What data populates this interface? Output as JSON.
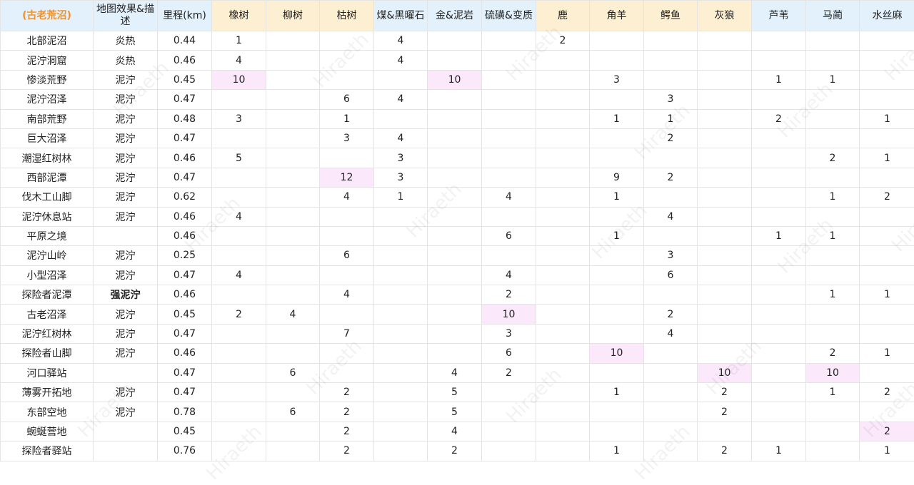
{
  "colors": {
    "header_blue": "#e2f1fb",
    "header_orange": "#fdefd1",
    "title": "#f0922b",
    "highlight": "#fbe8fb"
  },
  "watermark": "Hiraeth",
  "headers": [
    {
      "label": "(古老荒沼)",
      "style": "blue"
    },
    {
      "label": "地图效果&描述",
      "style": "blue"
    },
    {
      "label": "里程(km)",
      "style": "blue"
    },
    {
      "label": "橡树",
      "style": "orange"
    },
    {
      "label": "柳树",
      "style": "orange"
    },
    {
      "label": "枯树",
      "style": "orange"
    },
    {
      "label": "煤&黑曜石",
      "style": "blue"
    },
    {
      "label": "金&泥岩",
      "style": "blue"
    },
    {
      "label": "硫磺&变质",
      "style": "blue"
    },
    {
      "label": "鹿",
      "style": "orange"
    },
    {
      "label": "角羊",
      "style": "orange"
    },
    {
      "label": "鳄鱼",
      "style": "orange"
    },
    {
      "label": "灰狼",
      "style": "orange"
    },
    {
      "label": "芦苇",
      "style": "blue"
    },
    {
      "label": "马蔺",
      "style": "blue"
    },
    {
      "label": "水丝麻",
      "style": "blue"
    }
  ],
  "rows": [
    {
      "name": "北部泥沼",
      "effect": "炎热",
      "km": "0.44",
      "values": [
        "1",
        "",
        "",
        "4",
        "",
        "",
        "2",
        "",
        "",
        "",
        "",
        "",
        ""
      ],
      "highlight": []
    },
    {
      "name": "泥泞洞窟",
      "effect": "炎热",
      "km": "0.46",
      "values": [
        "4",
        "",
        "",
        "4",
        "",
        "",
        "",
        "",
        "",
        "",
        "",
        "",
        ""
      ],
      "highlight": []
    },
    {
      "name": "惨淡荒野",
      "effect": "泥泞",
      "km": "0.45",
      "values": [
        "10",
        "",
        "",
        "",
        "10",
        "",
        "",
        "3",
        "",
        "",
        "1",
        "1",
        ""
      ],
      "highlight": [
        0,
        4
      ]
    },
    {
      "name": "泥泞沼泽",
      "effect": "泥泞",
      "km": "0.47",
      "values": [
        "",
        "",
        "6",
        "4",
        "",
        "",
        "",
        "",
        "3",
        "",
        "",
        "",
        ""
      ],
      "highlight": []
    },
    {
      "name": "南部荒野",
      "effect": "泥泞",
      "km": "0.48",
      "values": [
        "3",
        "",
        "1",
        "",
        "",
        "",
        "",
        "1",
        "1",
        "",
        "2",
        "",
        "1"
      ],
      "highlight": []
    },
    {
      "name": "巨大沼泽",
      "effect": "泥泞",
      "km": "0.47",
      "values": [
        "",
        "",
        "3",
        "4",
        "",
        "",
        "",
        "",
        "2",
        "",
        "",
        "",
        ""
      ],
      "highlight": []
    },
    {
      "name": "潮湿红树林",
      "effect": "泥泞",
      "km": "0.46",
      "values": [
        "5",
        "",
        "",
        "3",
        "",
        "",
        "",
        "",
        "",
        "",
        "",
        "2",
        "1"
      ],
      "highlight": []
    },
    {
      "name": "西部泥潭",
      "effect": "泥泞",
      "km": "0.47",
      "values": [
        "",
        "",
        "12",
        "3",
        "",
        "",
        "",
        "9",
        "2",
        "",
        "",
        "",
        ""
      ],
      "highlight": [
        2
      ]
    },
    {
      "name": "伐木工山脚",
      "effect": "泥泞",
      "km": "0.62",
      "values": [
        "",
        "",
        "4",
        "1",
        "",
        "4",
        "",
        "1",
        "",
        "",
        "",
        "1",
        "2"
      ],
      "highlight": []
    },
    {
      "name": "泥泞休息站",
      "effect": "泥泞",
      "km": "0.46",
      "values": [
        "4",
        "",
        "",
        "",
        "",
        "",
        "",
        "",
        "4",
        "",
        "",
        "",
        ""
      ],
      "highlight": []
    },
    {
      "name": "平原之境",
      "effect": "",
      "km": "0.46",
      "values": [
        "",
        "",
        "",
        "",
        "",
        "6",
        "",
        "1",
        "",
        "",
        "1",
        "1",
        ""
      ],
      "highlight": []
    },
    {
      "name": "泥泞山岭",
      "effect": "泥泞",
      "km": "0.25",
      "values": [
        "",
        "",
        "6",
        "",
        "",
        "",
        "",
        "",
        "3",
        "",
        "",
        "",
        ""
      ],
      "highlight": []
    },
    {
      "name": "小型沼泽",
      "effect": "泥泞",
      "km": "0.47",
      "values": [
        "4",
        "",
        "",
        "",
        "",
        "4",
        "",
        "",
        "6",
        "",
        "",
        "",
        ""
      ],
      "highlight": []
    },
    {
      "name": "探险者泥潭",
      "effect": "强泥泞",
      "effect_bold": true,
      "km": "0.46",
      "values": [
        "",
        "",
        "4",
        "",
        "",
        "2",
        "",
        "",
        "",
        "",
        "",
        "1",
        "1"
      ],
      "highlight": []
    },
    {
      "name": "古老沼泽",
      "effect": "泥泞",
      "km": "0.45",
      "values": [
        "2",
        "4",
        "",
        "",
        "",
        "10",
        "",
        "",
        "2",
        "",
        "",
        "",
        ""
      ],
      "highlight": [
        5
      ]
    },
    {
      "name": "泥泞红树林",
      "effect": "泥泞",
      "km": "0.47",
      "values": [
        "",
        "",
        "7",
        "",
        "",
        "3",
        "",
        "",
        "4",
        "",
        "",
        "",
        ""
      ],
      "highlight": []
    },
    {
      "name": "探险者山脚",
      "effect": "泥泞",
      "km": "0.46",
      "values": [
        "",
        "",
        "",
        "",
        "",
        "6",
        "",
        "10",
        "",
        "",
        "",
        "2",
        "1"
      ],
      "highlight": [
        7
      ]
    },
    {
      "name": "河口驿站",
      "effect": "",
      "km": "0.47",
      "values": [
        "",
        "6",
        "",
        "",
        "4",
        "2",
        "",
        "",
        "",
        "10",
        "",
        "10",
        ""
      ],
      "highlight": [
        9,
        11
      ]
    },
    {
      "name": "薄雾开拓地",
      "effect": "泥泞",
      "km": "0.47",
      "values": [
        "",
        "",
        "2",
        "",
        "5",
        "",
        "",
        "1",
        "",
        "2",
        "",
        "1",
        "2"
      ],
      "highlight": []
    },
    {
      "name": "东部空地",
      "effect": "泥泞",
      "km": "0.78",
      "values": [
        "",
        "6",
        "2",
        "",
        "5",
        "",
        "",
        "",
        "",
        "2",
        "",
        "",
        ""
      ],
      "highlight": []
    },
    {
      "name": "蜿蜒营地",
      "effect": "",
      "km": "0.45",
      "values": [
        "",
        "",
        "2",
        "",
        "4",
        "",
        "",
        "",
        "",
        "",
        "",
        "",
        "2"
      ],
      "highlight": [
        12
      ]
    },
    {
      "name": "探险者驿站",
      "effect": "",
      "km": "0.76",
      "values": [
        "",
        "",
        "2",
        "",
        "2",
        "",
        "",
        "1",
        "",
        "2",
        "1",
        "",
        "1"
      ],
      "highlight": []
    }
  ]
}
